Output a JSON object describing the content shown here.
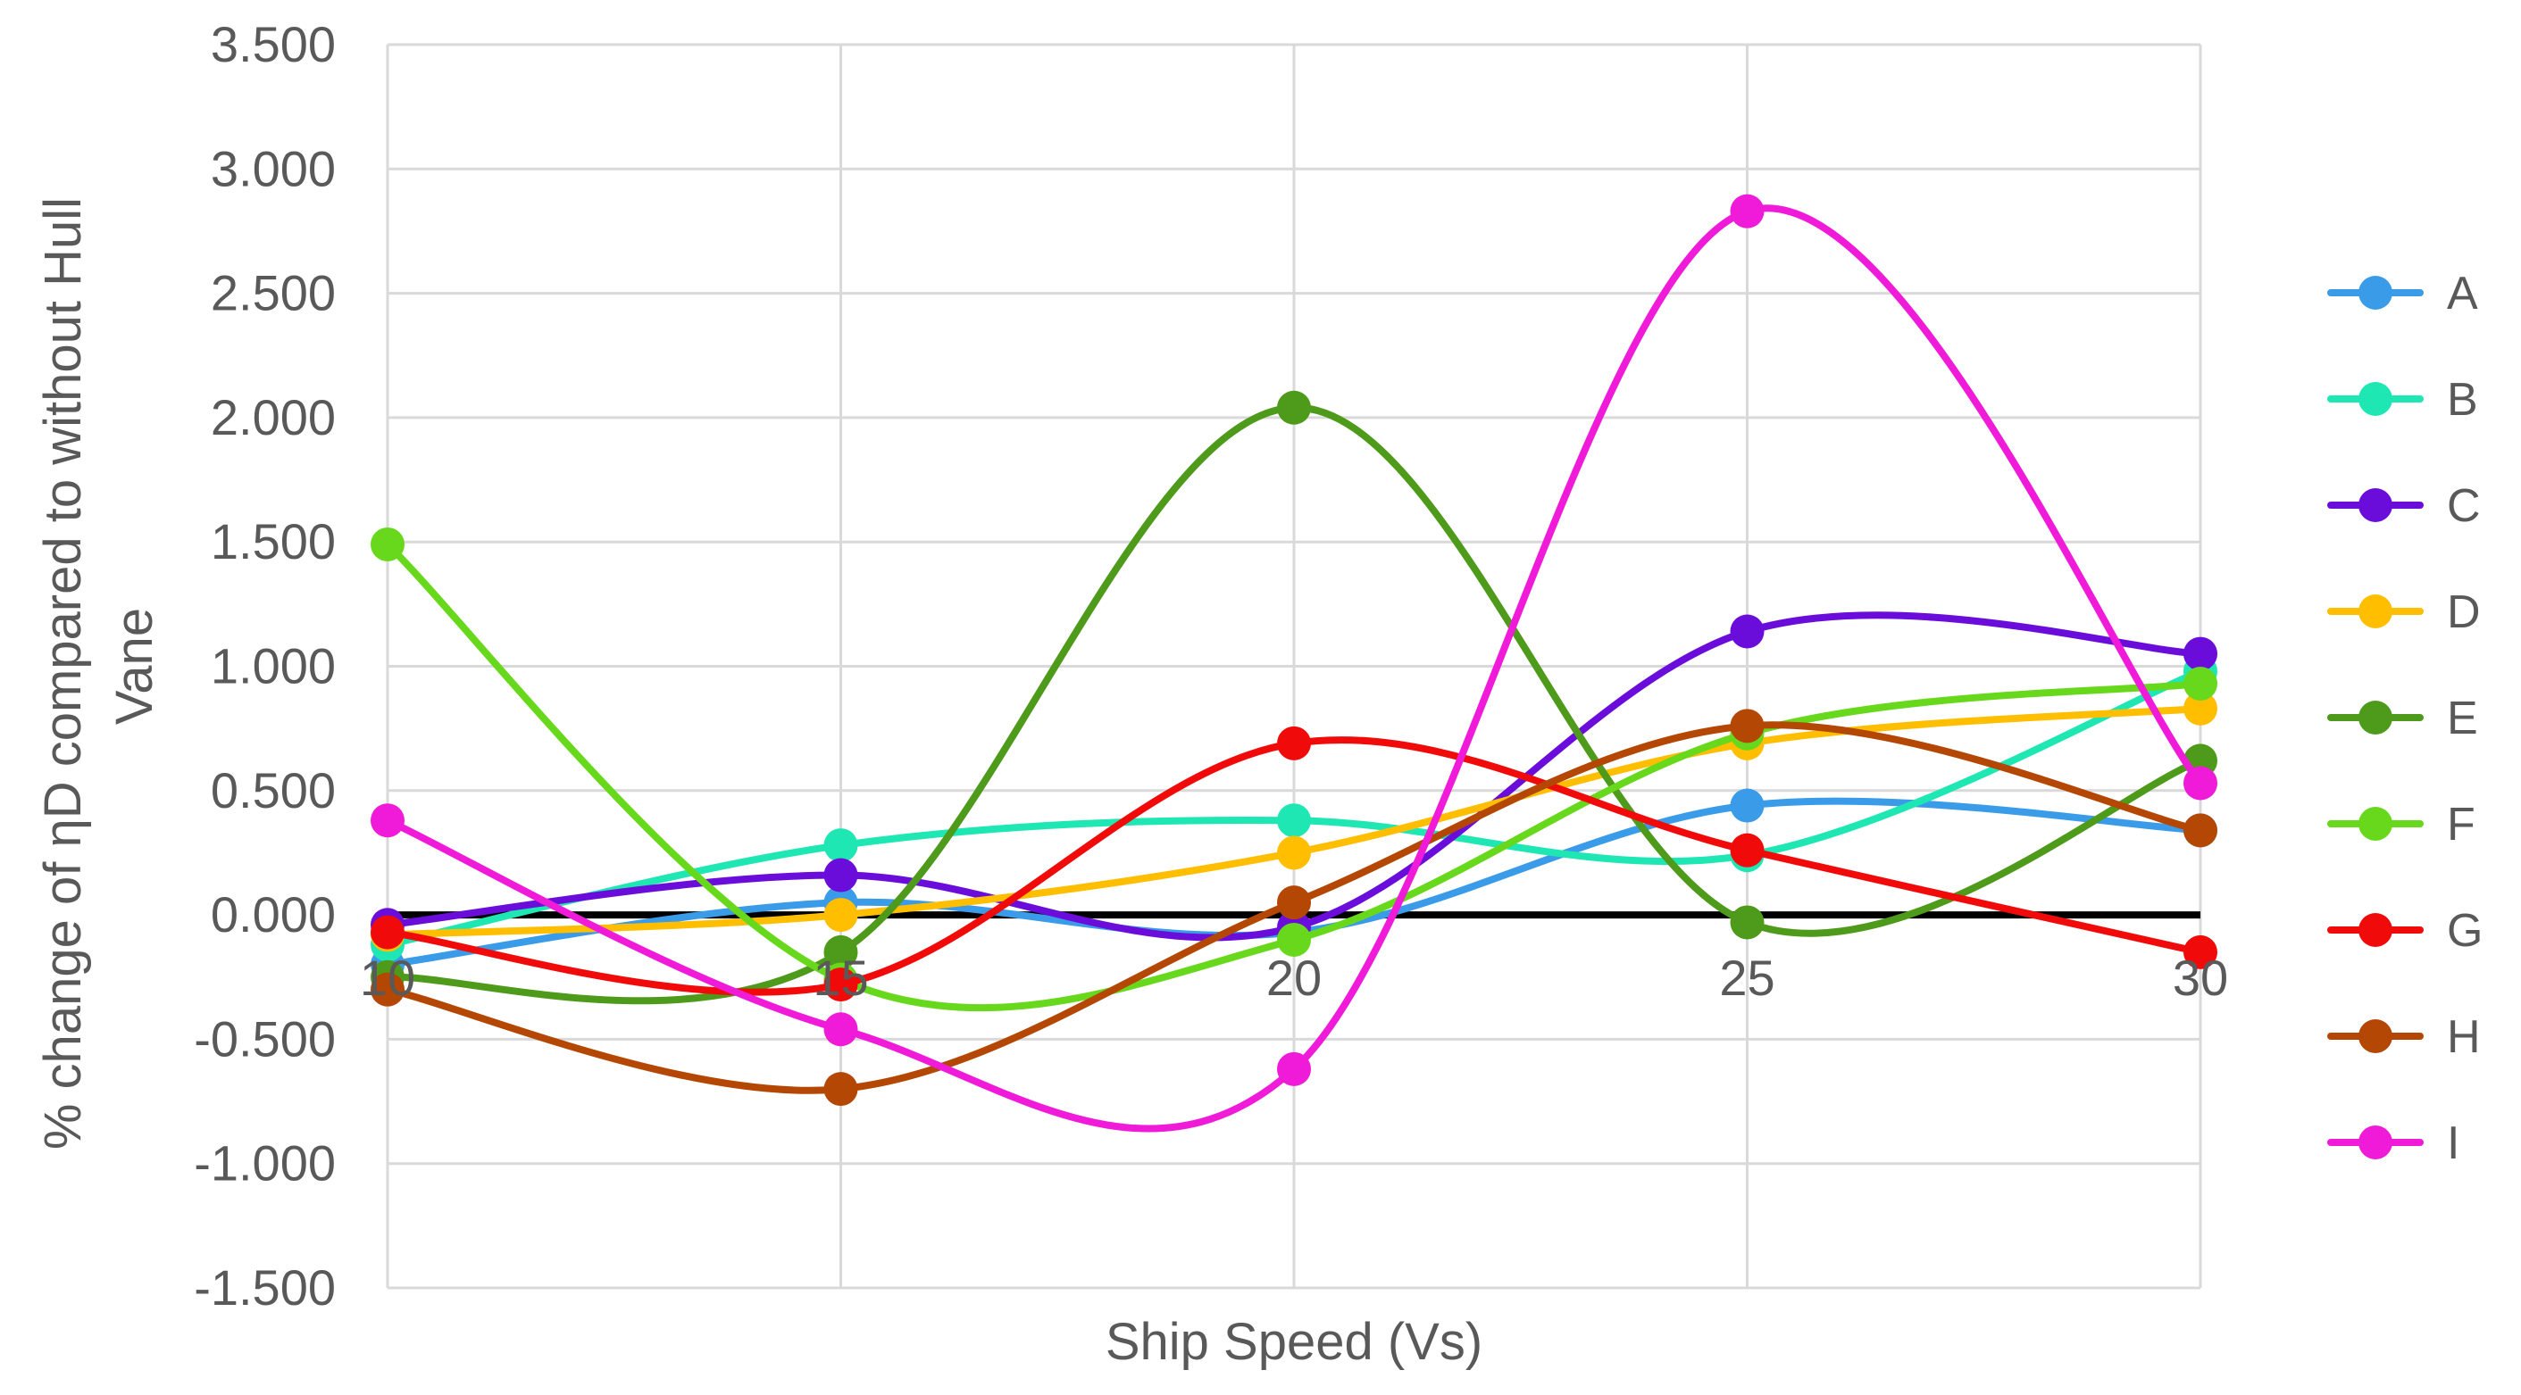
{
  "chart_data": {
    "type": "line",
    "title": "",
    "xlabel": "Ship Speed (Vs)",
    "ylabel_lines": [
      "% change of ηD compared to without Hull",
      "Vane"
    ],
    "x": [
      10,
      15,
      20,
      25,
      30
    ],
    "x_tick_labels": [
      "10",
      "15",
      "20",
      "25",
      "30"
    ],
    "xlim": [
      10,
      30
    ],
    "ylim": [
      -1.5,
      3.5
    ],
    "y_ticks": [
      3.5,
      3.0,
      2.5,
      2.0,
      1.5,
      1.0,
      0.5,
      0.0,
      -0.5,
      -1.0,
      -1.5
    ],
    "y_tick_labels": [
      "3.500",
      "3.000",
      "2.500",
      "2.000",
      "1.500",
      "1.000",
      "0.500",
      "0.000",
      "-0.500",
      "-1.000",
      "-1.500"
    ],
    "grid": true,
    "smooth": true,
    "baseline": {
      "y": 0,
      "color": "#000000"
    },
    "legend_position": "right",
    "series": [
      {
        "name": "A",
        "color": "#3a9be8",
        "values": [
          -0.2,
          0.05,
          -0.07,
          0.44,
          0.34
        ]
      },
      {
        "name": "B",
        "color": "#1fe7b3",
        "values": [
          -0.12,
          0.28,
          0.38,
          0.24,
          0.98
        ]
      },
      {
        "name": "C",
        "color": "#6a0ddb",
        "values": [
          -0.04,
          0.16,
          -0.05,
          1.14,
          1.05
        ]
      },
      {
        "name": "D",
        "color": "#ffbf00",
        "values": [
          -0.08,
          0.0,
          0.25,
          0.69,
          0.83
        ]
      },
      {
        "name": "E",
        "color": "#4e9a1a",
        "values": [
          -0.25,
          -0.15,
          2.04,
          -0.03,
          0.62
        ]
      },
      {
        "name": "F",
        "color": "#67d81c",
        "values": [
          1.49,
          -0.26,
          -0.1,
          0.73,
          0.93
        ]
      },
      {
        "name": "G",
        "color": "#f00a0a",
        "values": [
          -0.07,
          -0.28,
          0.69,
          0.26,
          -0.15
        ]
      },
      {
        "name": "H",
        "color": "#b34703",
        "values": [
          -0.3,
          -0.7,
          0.05,
          0.76,
          0.34
        ]
      },
      {
        "name": "I",
        "color": "#f01ad9",
        "values": [
          0.38,
          -0.46,
          -0.62,
          2.83,
          0.53
        ]
      }
    ]
  }
}
